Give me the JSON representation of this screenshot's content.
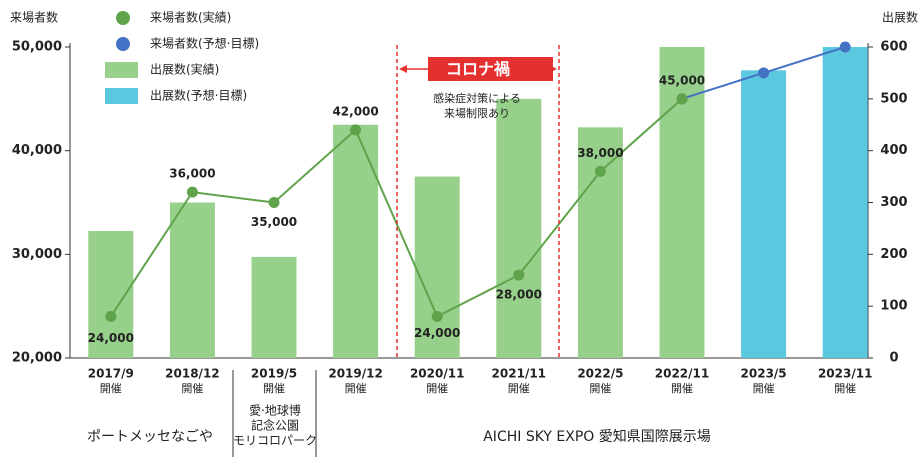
{
  "chart_data": {
    "type": "bar",
    "y_label": "来場者数",
    "y2_label": "出展数",
    "categories": [
      "2017/9",
      "2018/12",
      "2019/5",
      "2019/12",
      "2020/11",
      "2021/11",
      "2022/5",
      "2022/11",
      "2023/5",
      "2023/11"
    ],
    "category_sublabels": [
      "開催",
      "開催",
      "開催",
      "開催",
      "開催",
      "開催",
      "開催",
      "開催",
      "開催",
      "開催"
    ],
    "ylim": [
      20000,
      50000
    ],
    "yticks": [
      {
        "value": 20000,
        "label": "20,000"
      },
      {
        "value": 30000,
        "label": "30,000"
      },
      {
        "value": 40000,
        "label": "40,000"
      },
      {
        "value": 50000,
        "label": "50,000"
      }
    ],
    "y2lim": [
      0,
      600
    ],
    "y2ticks": [
      0,
      100,
      200,
      300,
      400,
      500,
      600
    ],
    "series": [
      {
        "name": "来場者数(実績)",
        "type": "line",
        "axis": "y",
        "color": "#5fa34a",
        "values": [
          24000,
          36000,
          35000,
          42000,
          24000,
          28000,
          38000,
          45000,
          null,
          null
        ],
        "value_labels": [
          "24,000",
          "36,000",
          "35,000",
          "42,000",
          "24,000",
          "28,000",
          "38,000",
          "45,000",
          null,
          null
        ]
      },
      {
        "name": "来場者数(予想·目標)",
        "type": "line",
        "axis": "y",
        "color": "#4472c4",
        "values": [
          null,
          null,
          null,
          null,
          null,
          null,
          null,
          45000,
          47500,
          50000
        ]
      },
      {
        "name": "出展数(実績)",
        "type": "bar",
        "axis": "y2",
        "color": "#96d08a",
        "values": [
          245,
          300,
          195,
          450,
          350,
          500,
          445,
          600,
          null,
          null
        ]
      },
      {
        "name": "出展数(予想·目標)",
        "type": "bar",
        "axis": "y2",
        "color": "#5bc8e0",
        "values": [
          null,
          null,
          null,
          null,
          null,
          null,
          null,
          null,
          555,
          600
        ]
      }
    ],
    "annotation": {
      "title": "コロナ禍",
      "note": [
        "感染症対策による",
        "来場制限あり"
      ]
    },
    "venues": [
      {
        "label": [
          "ポートメッセなごや"
        ]
      },
      {
        "label": [
          "愛·地球博",
          "記念公園",
          "モリコロパーク"
        ]
      },
      {
        "label": [
          "AICHI SKY EXPO 愛知県国際展示場"
        ]
      }
    ]
  }
}
